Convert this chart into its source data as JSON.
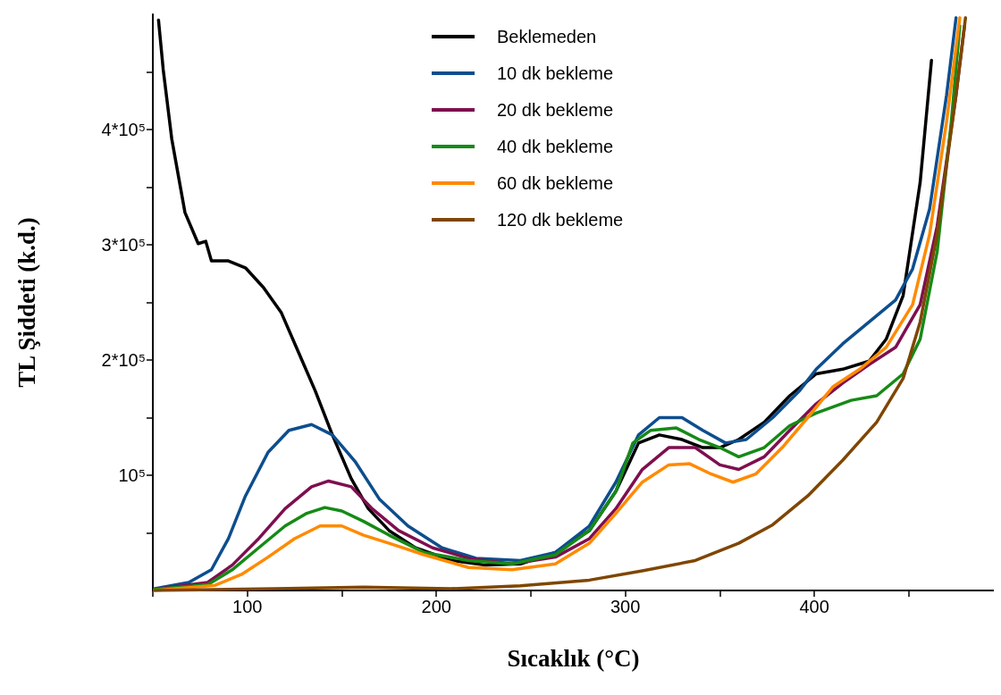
{
  "chart_data": {
    "type": "line",
    "xlabel": "Sıcaklık (°C)",
    "ylabel": "TL Şiddeti (k.d.)",
    "xlim": [
      50,
      495
    ],
    "ylim": [
      0,
      500000
    ],
    "xticks": [
      {
        "value": 50,
        "label": null
      },
      100,
      {
        "value": 150,
        "label": null
      },
      200,
      {
        "value": 250,
        "label": null
      },
      300,
      {
        "value": 350,
        "label": null
      },
      400,
      {
        "value": 450,
        "label": null
      }
    ],
    "yticks": [
      {
        "value": 50000,
        "label": null
      },
      {
        "value": 100000,
        "label": "10⁵"
      },
      {
        "value": 150000,
        "label": null
      },
      {
        "value": 200000,
        "label": "2*10⁵"
      },
      {
        "value": 250000,
        "label": null
      },
      {
        "value": 300000,
        "label": "3*10⁵"
      },
      {
        "value": 350000,
        "label": null
      },
      {
        "value": 400000,
        "label": "4*10⁵"
      },
      {
        "value": 450000,
        "label": null
      }
    ],
    "grid": false,
    "legend": "top",
    "marker": "none",
    "line_style": "solid",
    "series": [
      {
        "name": "Beklemeden",
        "color": "#000000",
        "x": [
          53,
          55.5,
          60,
          67,
          74,
          78,
          81,
          90,
          99,
          108.5,
          118,
          127,
          136,
          145,
          155,
          164,
          175,
          189,
          208,
          226,
          244.5,
          263,
          281,
          295,
          307,
          318,
          330,
          341,
          350,
          360,
          373.5,
          387,
          401,
          415,
          429,
          438,
          447,
          456,
          462
        ],
        "values": [
          495000,
          452000,
          392000,
          328000,
          301000,
          303000,
          286000,
          286000,
          280000,
          263000,
          241000,
          207000,
          173000,
          135000,
          97000,
          71000,
          52000,
          37000,
          26000,
          22000,
          23000,
          33000,
          52000,
          86000,
          128000,
          135000,
          131000,
          124000,
          124000,
          131000,
          146000,
          169000,
          188000,
          192000,
          199000,
          218000,
          256000,
          354000,
          460000
        ]
      },
      {
        "name": "10 dk bekleme",
        "color": "#0d4e8e",
        "x": [
          51,
          69,
          81,
          90,
          99,
          111,
          122,
          134,
          145,
          157,
          170,
          185,
          203,
          221,
          244.5,
          263,
          281,
          295,
          307,
          318,
          330,
          341,
          353,
          364,
          378,
          392,
          401,
          415,
          429,
          443,
          452,
          461,
          470,
          475
        ],
        "values": [
          1500,
          7000,
          18000,
          45000,
          82000,
          120000,
          139000,
          144000,
          135000,
          112000,
          79000,
          56000,
          37000,
          28000,
          26000,
          33000,
          56000,
          94000,
          135000,
          150000,
          150000,
          139000,
          128000,
          131000,
          150000,
          173000,
          192000,
          214000,
          233000,
          252000,
          279000,
          331000,
          430000,
          497000
        ]
      },
      {
        "name": "20 dk bekleme",
        "color": "#7e0f4f",
        "x": [
          51,
          79,
          92,
          106,
          120,
          134,
          143,
          155,
          166,
          180,
          198,
          217,
          240,
          263,
          281,
          295,
          309,
          323,
          337,
          350,
          360,
          373.5,
          387,
          401,
          415,
          429,
          443,
          456,
          465,
          475,
          479.5
        ],
        "values": [
          1000,
          7000,
          22000,
          45000,
          71000,
          90000,
          95000,
          90000,
          71000,
          52000,
          37000,
          28000,
          23000,
          29000,
          45000,
          71000,
          105000,
          124000,
          124000,
          109000,
          105000,
          116000,
          139000,
          162000,
          180000,
          196000,
          211000,
          248000,
          316000,
          430000,
          490000
        ]
      },
      {
        "name": "40 dk bekleme",
        "color": "#168a16",
        "x": [
          51,
          79,
          92,
          106,
          120,
          131.5,
          141,
          150,
          161.5,
          175,
          193.5,
          217,
          240,
          263,
          281,
          295,
          304,
          313.5,
          327,
          339,
          350,
          360,
          373.5,
          387,
          401,
          419.5,
          433,
          447,
          456,
          465,
          472.5,
          477
        ],
        "values": [
          1000,
          5000,
          18000,
          37000,
          56000,
          67000,
          72000,
          69000,
          60000,
          48000,
          33000,
          26000,
          23000,
          31000,
          52000,
          86000,
          128000,
          139000,
          141000,
          131000,
          124000,
          116000,
          124000,
          143000,
          154000,
          165000,
          169000,
          188000,
          218000,
          294000,
          407000,
          490000
        ]
      },
      {
        "name": "60 dk bekleme",
        "color": "#ff8a00",
        "x": [
          51,
          83,
          97,
          111,
          125,
          138.5,
          150,
          161.5,
          175,
          193.5,
          217,
          240,
          263,
          281,
          295,
          309,
          323,
          334,
          345.5,
          357,
          369,
          383,
          396.5,
          410,
          424,
          438,
          452,
          461,
          470,
          477
        ],
        "values": [
          0,
          4500,
          14000,
          29000,
          45000,
          56000,
          56000,
          48000,
          41000,
          31000,
          20000,
          18000,
          23000,
          41000,
          67000,
          94000,
          109000,
          110000,
          101000,
          94000,
          101000,
          124000,
          150000,
          177000,
          192000,
          211000,
          248000,
          309000,
          407000,
          497000
        ]
      },
      {
        "name": "120 dk bekleme",
        "color": "#7f4600",
        "x": [
          51,
          115,
          161.5,
          207.5,
          244.5,
          281,
          309,
          337,
          360,
          378,
          396.5,
          415,
          433,
          447,
          456,
          465,
          475,
          480
        ],
        "values": [
          0,
          1500,
          3000,
          1500,
          4000,
          9000,
          17000,
          26000,
          41000,
          57000,
          82000,
          113000,
          146000,
          184000,
          233000,
          309000,
          430000,
          497000
        ]
      }
    ]
  }
}
